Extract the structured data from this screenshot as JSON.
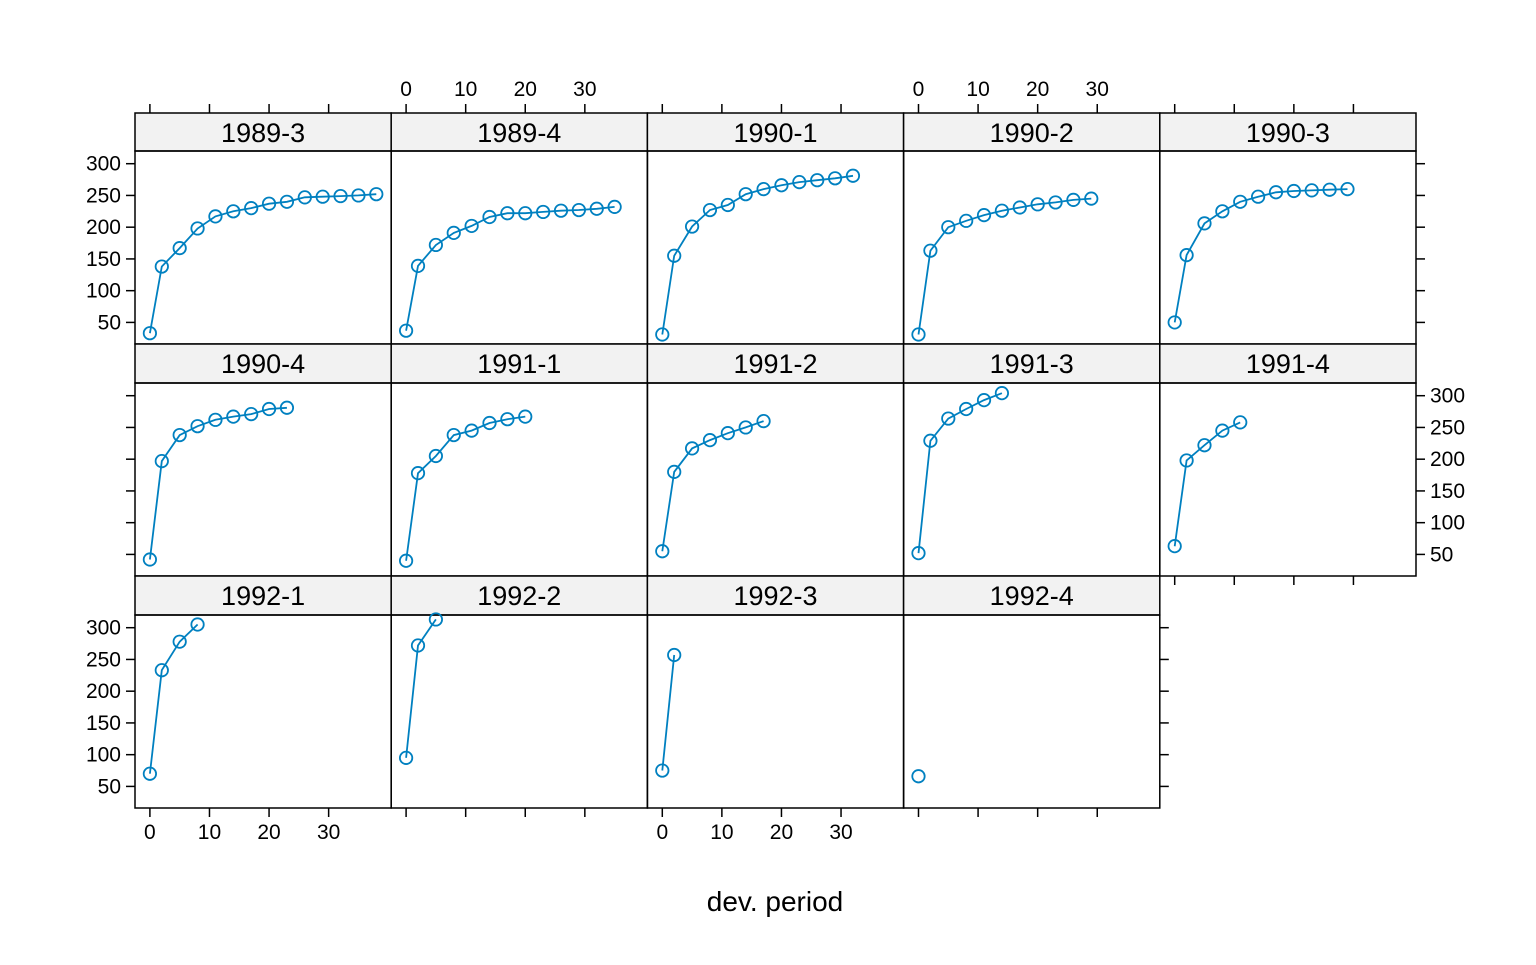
{
  "chart_data": {
    "type": "line",
    "subtype": "lattice-panels",
    "xlabel": "dev. period",
    "ylabel": "",
    "title": "",
    "xlim": [
      -2.5,
      40.5
    ],
    "ylim": [
      16,
      320
    ],
    "x_ticks": [
      0,
      10,
      20,
      30
    ],
    "y_ticks": [
      50,
      100,
      150,
      200,
      250,
      300
    ],
    "x_tick_labels": [
      "0",
      "10",
      "20",
      "30"
    ],
    "y_tick_labels": [
      "50",
      "100",
      "150",
      "200",
      "250",
      "300"
    ],
    "line_color": "#0080c0",
    "strip_color": "#f2f2f2",
    "layout": {
      "columns": 5,
      "rows": 3
    },
    "panels": [
      {
        "label": "1989-3",
        "x": [
          0,
          2,
          5,
          8,
          11,
          14,
          17,
          20,
          23,
          26,
          29,
          32,
          35,
          38
        ],
        "y": [
          33,
          138,
          167,
          198,
          217,
          225,
          230,
          237,
          240,
          247,
          248,
          249,
          250,
          252
        ]
      },
      {
        "label": "1989-4",
        "x": [
          0,
          2,
          5,
          8,
          11,
          14,
          17,
          20,
          23,
          26,
          29,
          32,
          35
        ],
        "y": [
          37,
          139,
          172,
          191,
          202,
          216,
          222,
          222,
          224,
          226,
          227,
          229,
          232
        ]
      },
      {
        "label": "1990-1",
        "x": [
          0,
          2,
          5,
          8,
          11,
          14,
          17,
          20,
          23,
          26,
          29,
          32
        ],
        "y": [
          31,
          155,
          201,
          227,
          235,
          252,
          260,
          266,
          271,
          274,
          277,
          281
        ]
      },
      {
        "label": "1990-2",
        "x": [
          0,
          2,
          5,
          8,
          11,
          14,
          17,
          20,
          23,
          26,
          29
        ],
        "y": [
          31,
          163,
          200,
          210,
          219,
          226,
          231,
          236,
          239,
          243,
          245
        ]
      },
      {
        "label": "1990-3",
        "x": [
          0,
          2,
          5,
          8,
          11,
          14,
          17,
          20,
          23,
          26,
          29
        ],
        "y": [
          50,
          156,
          206,
          225,
          240,
          248,
          255,
          257,
          258,
          259,
          260
        ]
      },
      {
        "label": "1990-4",
        "x": [
          0,
          2,
          5,
          8,
          11,
          14,
          17,
          20,
          23
        ],
        "y": [
          42,
          197,
          238,
          252,
          262,
          267,
          271,
          279,
          281
        ]
      },
      {
        "label": "1991-1",
        "x": [
          0,
          2,
          5,
          8,
          11,
          14,
          17,
          20
        ],
        "y": [
          40,
          178,
          205,
          238,
          245,
          257,
          263,
          267
        ]
      },
      {
        "label": "1991-2",
        "x": [
          0,
          2,
          5,
          8,
          11,
          14,
          17
        ],
        "y": [
          55,
          180,
          217,
          230,
          241,
          250,
          260
        ]
      },
      {
        "label": "1991-3",
        "x": [
          0,
          2,
          5,
          8,
          11,
          14
        ],
        "y": [
          52,
          229,
          264,
          279,
          293,
          304
        ]
      },
      {
        "label": "1991-4",
        "x": [
          0,
          2,
          5,
          8,
          11
        ],
        "y": [
          63,
          198,
          222,
          245,
          258
        ]
      },
      {
        "label": "1992-1",
        "x": [
          0,
          2,
          5,
          8
        ],
        "y": [
          70,
          233,
          278,
          305
        ]
      },
      {
        "label": "1992-2",
        "x": [
          0,
          2,
          5
        ],
        "y": [
          95,
          272,
          313
        ]
      },
      {
        "label": "1992-3",
        "x": [
          0,
          2
        ],
        "y": [
          75,
          257
        ]
      },
      {
        "label": "1992-4",
        "x": [
          0
        ],
        "y": [
          66
        ]
      }
    ]
  }
}
